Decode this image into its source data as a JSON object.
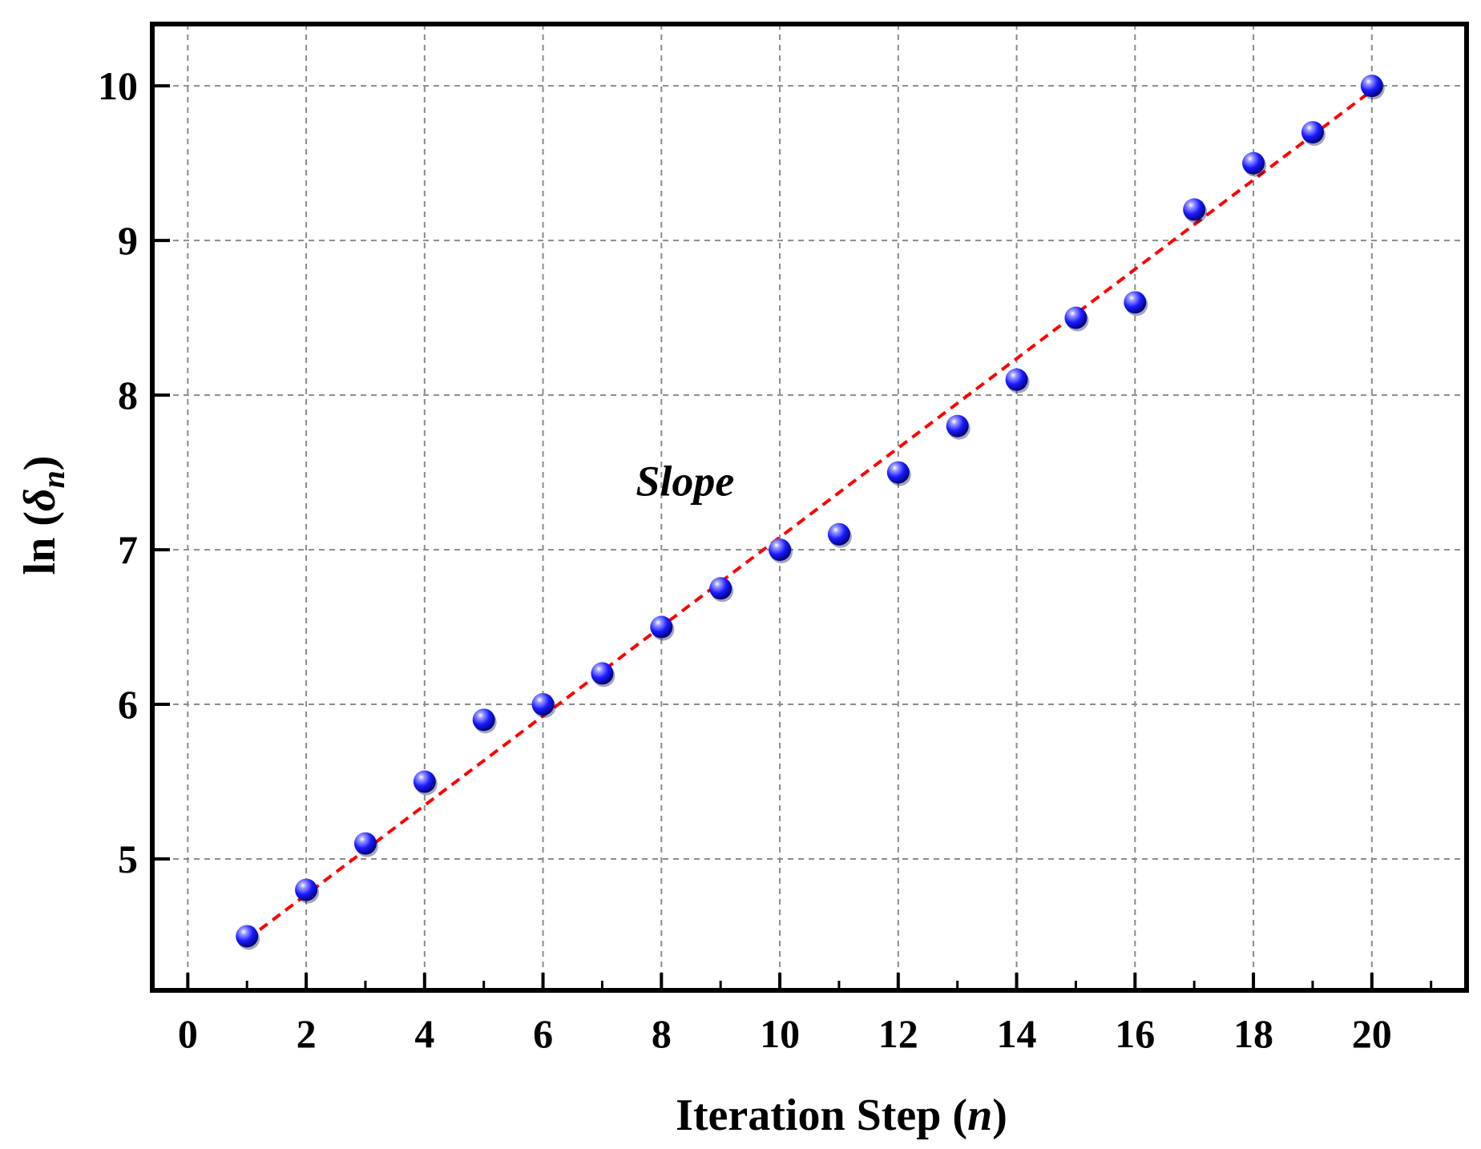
{
  "chart_data": {
    "type": "scatter",
    "title": "",
    "xlabel": {
      "prefix": "Iteration Step (",
      "var": "n",
      "suffix": ")"
    },
    "ylabel": {
      "prefix": "ln (",
      "var": "δ",
      "sub": "n",
      "suffix": ")"
    },
    "xlim": [
      -0.6,
      21.6
    ],
    "ylim": [
      4.15,
      10.4
    ],
    "xticks": [
      0,
      2,
      4,
      6,
      8,
      10,
      12,
      14,
      16,
      18,
      20
    ],
    "xticks_minor": [
      1,
      3,
      5,
      7,
      9,
      11,
      13,
      15,
      17,
      19,
      21
    ],
    "yticks": [
      5,
      6,
      7,
      8,
      9,
      10
    ],
    "grid": true,
    "series": [
      {
        "marker": "sphere",
        "color": "#1a1aff",
        "x": [
          1,
          2,
          3,
          4,
          5,
          6,
          7,
          8,
          9,
          10,
          11,
          12,
          13,
          14,
          15,
          16,
          17,
          18,
          19,
          20
        ],
        "y": [
          4.5,
          4.8,
          5.1,
          5.5,
          5.9,
          6.0,
          6.2,
          6.5,
          6.75,
          7.0,
          7.1,
          7.5,
          7.8,
          8.1,
          8.5,
          8.6,
          9.2,
          9.5,
          9.7,
          10.0
        ]
      }
    ],
    "fit_line": {
      "style": "dashed",
      "color": "#ff0000",
      "x": [
        1,
        20
      ],
      "y": [
        4.48,
        9.97
      ]
    },
    "annotations": [
      {
        "text": "Slope",
        "x": 8.4,
        "y": 7.35
      }
    ]
  }
}
